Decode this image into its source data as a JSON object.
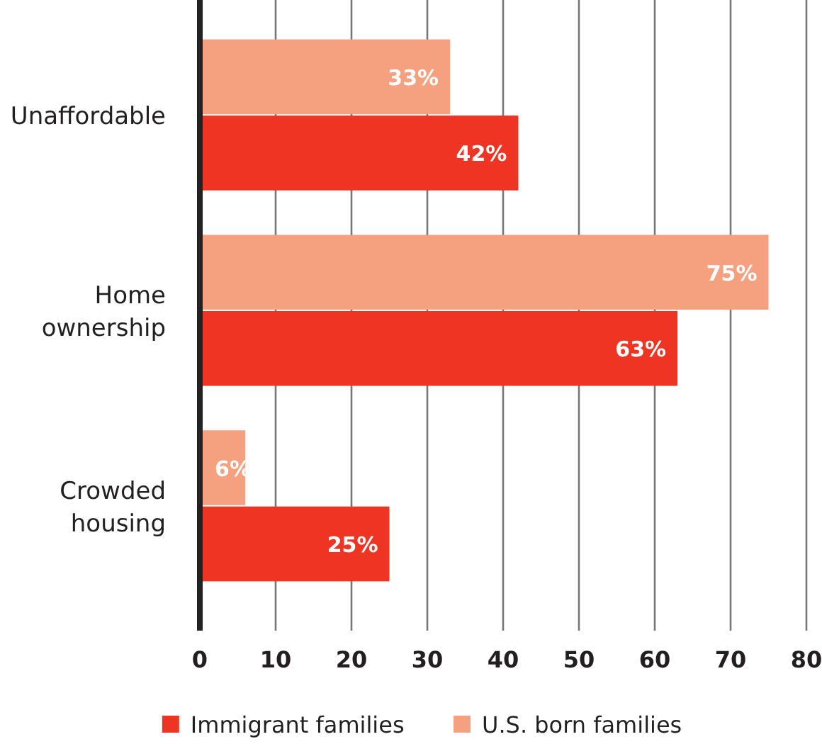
{
  "chart_data": {
    "type": "bar",
    "orientation": "horizontal",
    "categories": [
      "Unaffordable",
      "Home ownership",
      "Crowded housing"
    ],
    "series": [
      {
        "name": "Immigrant families",
        "color": "#ee3524",
        "values": [
          42,
          63,
          25
        ],
        "value_labels": [
          "42%",
          "63%",
          "25%"
        ]
      },
      {
        "name": "U.S. born families",
        "color": "#f5a07f",
        "values": [
          33,
          75,
          6
        ],
        "value_labels": [
          "33%",
          "75%",
          "6%"
        ]
      }
    ],
    "xlim": [
      0,
      80
    ],
    "xticks": [
      0,
      10,
      20,
      30,
      40,
      50,
      60,
      70,
      80
    ],
    "grid": "x",
    "legend": "bottom"
  }
}
